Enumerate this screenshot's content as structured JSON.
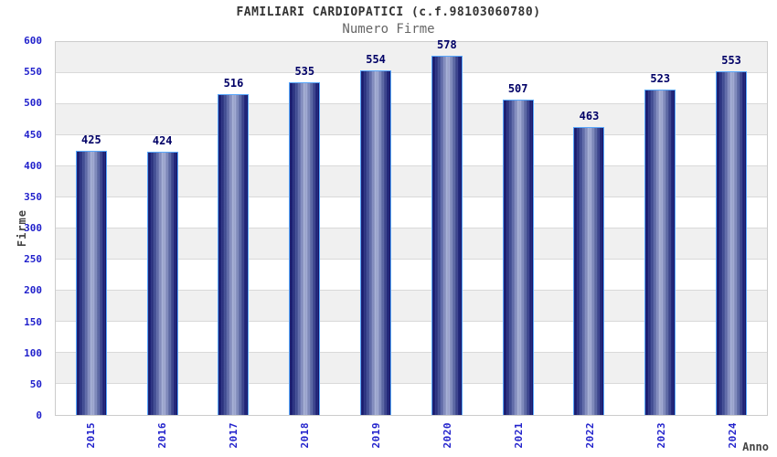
{
  "header": {
    "title": "FAMILIARI CARDIOPATICI (c.f.98103060780)",
    "subtitle": "Numero Firme"
  },
  "chart_data": {
    "type": "bar",
    "title": "FAMILIARI CARDIOPATICI (c.f.98103060780)",
    "subtitle": "Numero Firme",
    "categories": [
      "2015",
      "2016",
      "2017",
      "2018",
      "2019",
      "2020",
      "2021",
      "2022",
      "2023",
      "2024"
    ],
    "values": [
      425,
      424,
      516,
      535,
      554,
      578,
      507,
      463,
      523,
      553
    ],
    "xlabel": "Anno",
    "ylabel": "Firme",
    "ylim": [
      0,
      600
    ],
    "yticks": [
      0,
      50,
      100,
      150,
      200,
      250,
      300,
      350,
      400,
      450,
      500,
      550,
      600
    ],
    "grid": true,
    "legend_position": "none",
    "bands": "alternating gray/white every 50 units",
    "colors": {
      "tick_text": "#2222cc",
      "value_text": "#000066",
      "bar_dark": "#12126b",
      "bar_light": "#aab4da",
      "bar_border": "#58a7fc",
      "band_gray": "#f0f0f0",
      "gridline": "#d9d9d9",
      "frame": "#cccccc",
      "title_text": "#333333",
      "subtitle_text": "#666666",
      "axis_title_text": "#444444"
    }
  }
}
